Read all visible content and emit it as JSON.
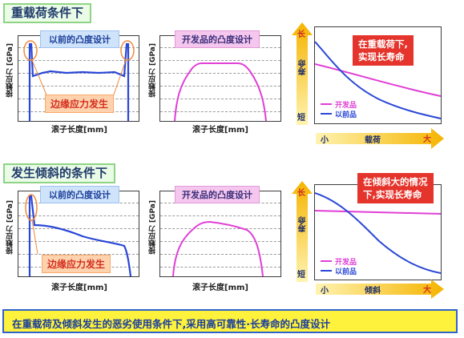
{
  "sections": [
    {
      "title": "重载荷条件下",
      "left_header": "以前的凸度设计",
      "middle_header": "开发品的凸度设计",
      "edge_label": "边缘应力发生",
      "y_label": "接触应力 [GPa]",
      "x_label": "滚子长度[mm]",
      "callout": [
        "在重载荷下,",
        "实现长寿命"
      ],
      "axis_y_top": "长",
      "axis_y_mid": "寿命",
      "axis_y_bottom": "短",
      "axis_x_left": "小",
      "axis_x_mid": "载荷",
      "axis_x_right": "大",
      "legend": [
        {
          "label": "开发品",
          "color": "#e040d6"
        },
        {
          "label": "以前品",
          "color": "#2a47d6"
        }
      ]
    },
    {
      "title": "发生倾斜的条件下",
      "left_header": "以前的凸度设计",
      "middle_header": "开发品的凸度设计",
      "edge_label": "边缘应力发生",
      "y_label": "接触应力 [GPa]",
      "x_label": "滚子长度[mm]",
      "callout": [
        "在倾斜大的情况",
        "下,实现长寿命"
      ],
      "axis_y_top": "长",
      "axis_y_mid": "寿命",
      "axis_y_bottom": "短",
      "axis_x_left": "小",
      "axis_x_mid": "倾斜",
      "axis_x_right": "大",
      "legend": [
        {
          "label": "开发品",
          "color": "#e040d6"
        },
        {
          "label": "以前品",
          "color": "#2a47d6"
        }
      ]
    }
  ],
  "bottom_banner": "在重载荷及倾斜发生的恶劣使用条件下,采用高可靠性·长寿命的凸度设计",
  "colors": {
    "conventional": "#2a47d6",
    "developed": "#e040d6",
    "arrow": "#f5b400",
    "callout": "#e5342b",
    "banner_bg": "#fff23c",
    "banner_border": "#2f63c9"
  }
}
